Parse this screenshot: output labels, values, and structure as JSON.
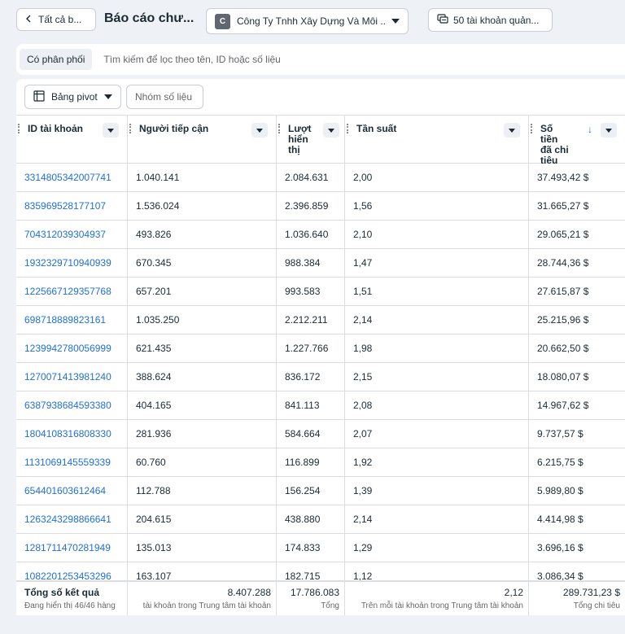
{
  "topbar": {
    "back_label": "Tất cả b...",
    "page_title": "Báo cáo chư...",
    "company_badge": "C",
    "company_name": "Công Ty Tnhh Xây Dựng Và Môi ...",
    "accounts_label": "50 tài khoản quản..."
  },
  "filter": {
    "chip_label": "Có phân phối",
    "search_placeholder": "Tìm kiếm để lọc theo tên, ID hoặc số liệu"
  },
  "toolbar": {
    "pivot_label": "Bảng pivot",
    "metric_group_label": "Nhóm số liệu"
  },
  "table": {
    "columns": [
      {
        "label": "ID tài khoản"
      },
      {
        "label": "Người tiếp cận"
      },
      {
        "label": "Lượt hiển thị"
      },
      {
        "label": "Tần suất"
      },
      {
        "label": "Số tiền đã chi tiêu"
      }
    ],
    "rows": [
      {
        "id": "3314805342007741",
        "reach": "1.040.141",
        "impressions": "2.084.631",
        "frequency": "2,00",
        "spend": "37.493,42 $"
      },
      {
        "id": "835969528177107",
        "reach": "1.536.024",
        "impressions": "2.396.859",
        "frequency": "1,56",
        "spend": "31.665,27 $"
      },
      {
        "id": "704312039304937",
        "reach": "493.826",
        "impressions": "1.036.640",
        "frequency": "2,10",
        "spend": "29.065,21 $"
      },
      {
        "id": "1932329710940939",
        "reach": "670.345",
        "impressions": "988.384",
        "frequency": "1,47",
        "spend": "28.744,36 $"
      },
      {
        "id": "1225667129357768",
        "reach": "657.201",
        "impressions": "993.583",
        "frequency": "1,51",
        "spend": "27.615,87 $"
      },
      {
        "id": "698718889823161",
        "reach": "1.035.250",
        "impressions": "2.212.211",
        "frequency": "2,14",
        "spend": "25.215,96 $"
      },
      {
        "id": "1239942780056999",
        "reach": "621.435",
        "impressions": "1.227.766",
        "frequency": "1,98",
        "spend": "20.662,50 $"
      },
      {
        "id": "1270071413981240",
        "reach": "388.624",
        "impressions": "836.172",
        "frequency": "2,15",
        "spend": "18.080,07 $"
      },
      {
        "id": "6387938684593380",
        "reach": "404.165",
        "impressions": "841.113",
        "frequency": "2,08",
        "spend": "14.967,62 $"
      },
      {
        "id": "1804108316808330",
        "reach": "281.936",
        "impressions": "584.664",
        "frequency": "2,07",
        "spend": "9.737,57 $"
      },
      {
        "id": "1131069145559339",
        "reach": "60.760",
        "impressions": "116.899",
        "frequency": "1,92",
        "spend": "6.215,75 $"
      },
      {
        "id": "654401603612464",
        "reach": "112.788",
        "impressions": "156.254",
        "frequency": "1,39",
        "spend": "5.989,80 $"
      },
      {
        "id": "1263243298866641",
        "reach": "204.615",
        "impressions": "438.880",
        "frequency": "2,14",
        "spend": "4.414,98 $"
      },
      {
        "id": "1281711470281949",
        "reach": "135.013",
        "impressions": "174.833",
        "frequency": "1,29",
        "spend": "3.696,16 $"
      },
      {
        "id": "1082201253453296",
        "reach": "163.107",
        "impressions": "182.715",
        "frequency": "1,12",
        "spend": "3.086,34 $"
      }
    ],
    "footer": {
      "title": "Tổng số kết quả",
      "subtitle": "Đang hiển thị 46/46 hàng",
      "reach_total": "8.407.288",
      "reach_sub": "tài khoản trong Trung tâm tài khoản",
      "impressions_total": "17.786.083",
      "impressions_sub": "Tổng",
      "frequency_total": "2,12",
      "frequency_sub": "Trên mỗi tài khoản trong Trung tâm tài khoản",
      "spend_total": "289.731,23 $",
      "spend_sub": "Tổng chi tiêu"
    }
  },
  "colors": {
    "link": "#216fdb",
    "sort_arrow": "#1b74e4",
    "background": "#eef1f6"
  }
}
